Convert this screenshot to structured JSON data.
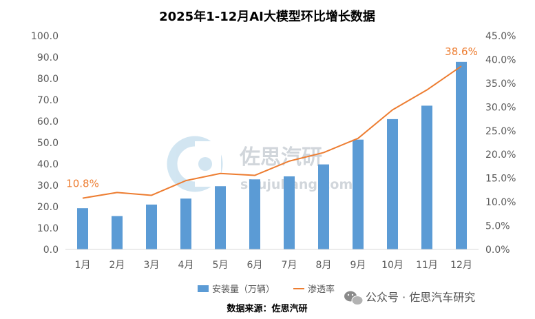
{
  "chart_data": {
    "type": "bar+line",
    "title": "2025年1-12月AI大模型环比增长数据",
    "categories": [
      "1月",
      "2月",
      "3月",
      "4月",
      "5月",
      "6月",
      "7月",
      "8月",
      "9月",
      "10月",
      "11月",
      "12月"
    ],
    "series": [
      {
        "name": "安装量（万辆）",
        "type": "bar",
        "axis": "left",
        "values": [
          19.3,
          15.6,
          21.0,
          23.8,
          29.6,
          32.8,
          34.2,
          39.8,
          51.4,
          61.0,
          67.3,
          87.8
        ]
      },
      {
        "name": "渗透率",
        "type": "line",
        "axis": "right",
        "values": [
          10.8,
          12.0,
          11.4,
          14.5,
          16.0,
          15.6,
          18.6,
          20.4,
          23.4,
          29.4,
          33.6,
          38.6
        ],
        "unit": "%"
      }
    ],
    "y_left": {
      "min": 0,
      "max": 100,
      "ticks": [
        "0.0",
        "10.0",
        "20.0",
        "30.0",
        "40.0",
        "50.0",
        "60.0",
        "70.0",
        "80.0",
        "90.0",
        "100.0"
      ]
    },
    "y_right": {
      "min": 0,
      "max": 45,
      "ticks": [
        "0.0%",
        "5.0%",
        "10.0%",
        "15.0%",
        "20.0%",
        "25.0%",
        "30.0%",
        "35.0%",
        "40.0%",
        "45.0%"
      ]
    },
    "annotations": [
      {
        "series": "渗透率",
        "index": 0,
        "label": "10.8%"
      },
      {
        "series": "渗透率",
        "index": 11,
        "label": "38.6%"
      }
    ],
    "legend_position": "bottom",
    "grid": false
  },
  "source_note": "数据来源：佐思汽研",
  "watermark": {
    "brand": "佐思汽研",
    "site": "shujubang.com"
  },
  "wechat_tag": "公众号 · 佐思汽车研究",
  "colors": {
    "bar": "#5b9bd5",
    "line": "#ed7d31",
    "axis": "#d9d9d9",
    "tick_text": "#595959"
  }
}
